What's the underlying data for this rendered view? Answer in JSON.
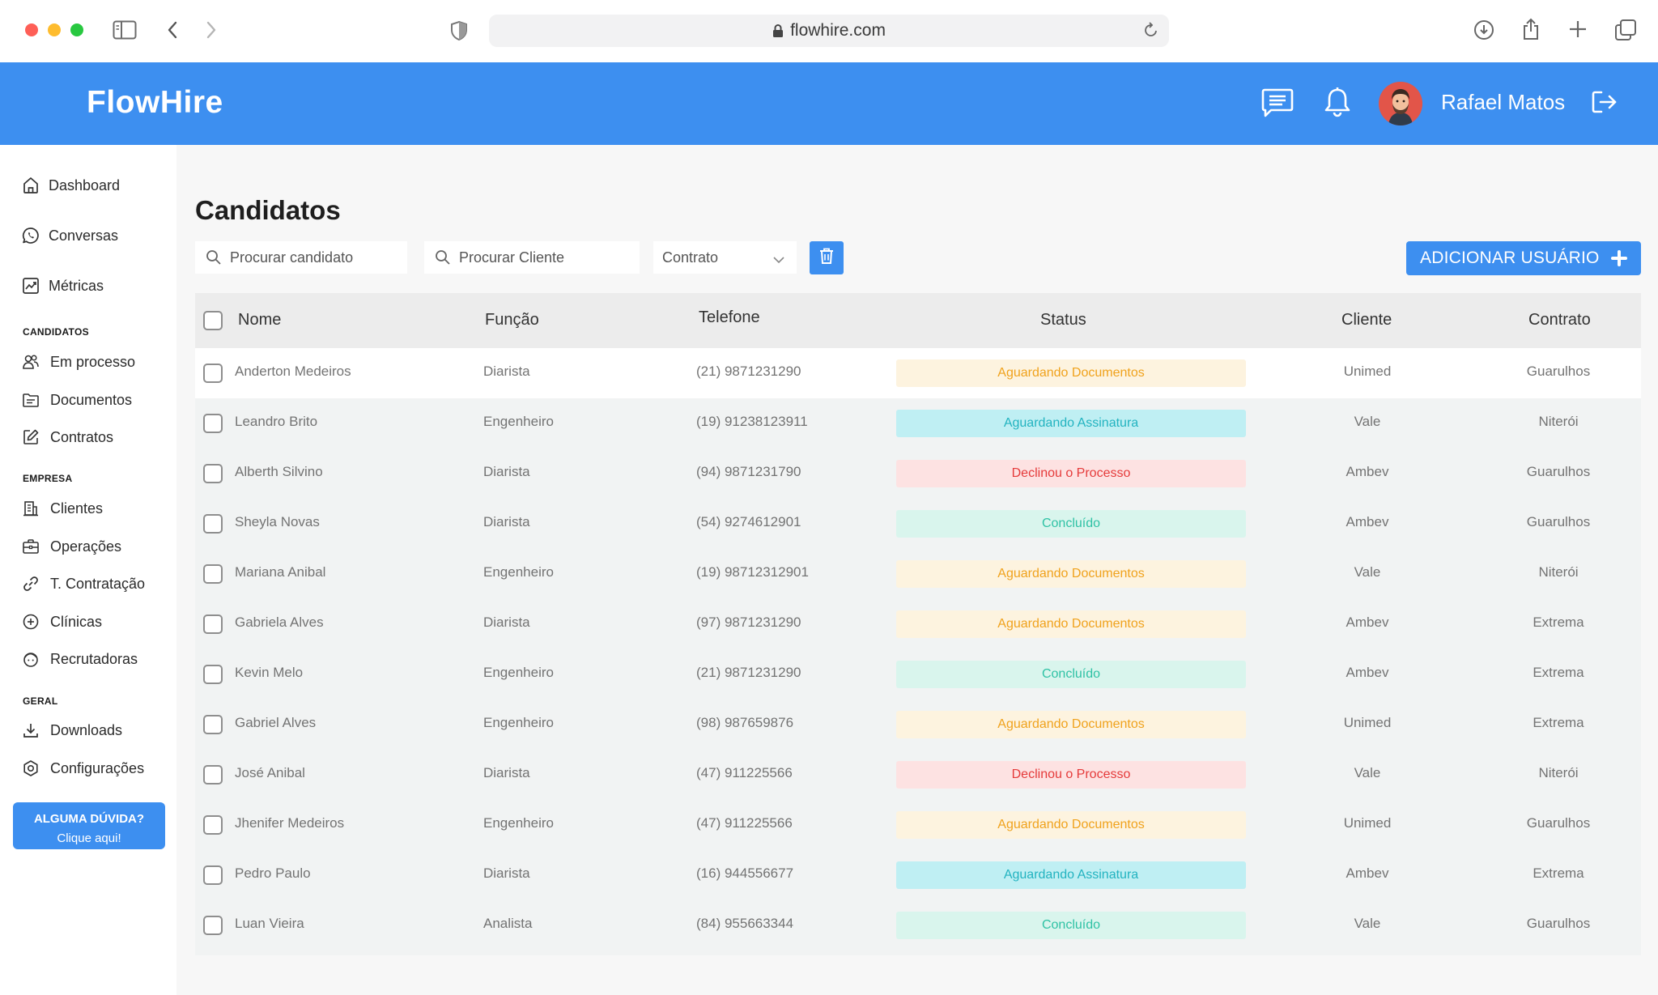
{
  "browser": {
    "url": "flowhire.com"
  },
  "header": {
    "brand": "FlowHire",
    "user_name": "Rafael Matos"
  },
  "sidebar": {
    "main_items": [
      {
        "label": "Dashboard",
        "icon": "home-icon"
      },
      {
        "label": "Conversas",
        "icon": "whatsapp-icon"
      },
      {
        "label": "Métricas",
        "icon": "chart-icon"
      }
    ],
    "sections": [
      {
        "title": "CANDIDATOS",
        "items": [
          {
            "label": "Em processo",
            "icon": "users-icon"
          },
          {
            "label": "Documentos",
            "icon": "folder-icon"
          },
          {
            "label": "Contratos",
            "icon": "edit-icon"
          }
        ]
      },
      {
        "title": "EMPRESA",
        "items": [
          {
            "label": "Clientes",
            "icon": "building-icon"
          },
          {
            "label": "Operações",
            "icon": "briefcase-icon"
          },
          {
            "label": "T. Contratação",
            "icon": "link-icon"
          },
          {
            "label": "Clínicas",
            "icon": "plus-circle-icon"
          },
          {
            "label": "Recrutadoras",
            "icon": "face-icon"
          }
        ]
      },
      {
        "title": "GERAL",
        "items": [
          {
            "label": "Downloads",
            "icon": "download-icon"
          },
          {
            "label": "Configurações",
            "icon": "settings-icon"
          }
        ]
      }
    ],
    "help": {
      "line1": "ALGUMA DÚVIDA?",
      "line2": "Clique aqui!"
    }
  },
  "page": {
    "title": "Candidatos",
    "search_candidate_placeholder": "Procurar candidato",
    "search_client_placeholder": "Procurar Cliente",
    "contract_select": "Contrato",
    "add_button": "ADICIONAR USUÁRIO"
  },
  "table": {
    "columns": [
      "Nome",
      "Função",
      "Telefone",
      "Status",
      "Cliente",
      "Contrato"
    ],
    "rows": [
      {
        "nome": "Anderton Medeiros",
        "funcao": "Diarista",
        "telefone": "(21) 9871231290",
        "status": "Aguardando Documentos",
        "cliente": "Unimed",
        "contrato": "Guarulhos"
      },
      {
        "nome": "Leandro Brito",
        "funcao": "Engenheiro",
        "telefone": "(19) 91238123911",
        "status": "Aguardando Assinatura",
        "cliente": "Vale",
        "contrato": "Niterói"
      },
      {
        "nome": "Alberth Silvino",
        "funcao": "Diarista",
        "telefone": "(94) 9871231790",
        "status": "Declinou o Processo",
        "cliente": "Ambev",
        "contrato": "Guarulhos"
      },
      {
        "nome": "Sheyla Novas",
        "funcao": "Diarista",
        "telefone": "(54) 9274612901",
        "status": "Concluído",
        "cliente": "Ambev",
        "contrato": "Guarulhos"
      },
      {
        "nome": "Mariana Anibal",
        "funcao": "Engenheiro",
        "telefone": "(19) 98712312901",
        "status": "Aguardando Documentos",
        "cliente": "Vale",
        "contrato": "Niterói"
      },
      {
        "nome": "Gabriela Alves",
        "funcao": "Diarista",
        "telefone": "(97) 9871231290",
        "status": "Aguardando Documentos",
        "cliente": "Ambev",
        "contrato": "Extrema"
      },
      {
        "nome": "Kevin Melo",
        "funcao": "Engenheiro",
        "telefone": "(21) 9871231290",
        "status": "Concluído",
        "cliente": "Ambev",
        "contrato": "Extrema"
      },
      {
        "nome": "Gabriel Alves",
        "funcao": "Engenheiro",
        "telefone": "(98) 987659876",
        "status": "Aguardando Documentos",
        "cliente": "Unimed",
        "contrato": "Extrema"
      },
      {
        "nome": "José Anibal",
        "funcao": "Diarista",
        "telefone": "(47) 911225566",
        "status": "Declinou o Processo",
        "cliente": "Vale",
        "contrato": "Niterói"
      },
      {
        "nome": "Jhenifer Medeiros",
        "funcao": "Engenheiro",
        "telefone": "(47) 911225566",
        "status": "Aguardando Documentos",
        "cliente": "Unimed",
        "contrato": "Guarulhos"
      },
      {
        "nome": "Pedro Paulo",
        "funcao": "Diarista",
        "telefone": "(16) 944556677",
        "status": "Aguardando Assinatura",
        "cliente": "Ambev",
        "contrato": "Extrema"
      },
      {
        "nome": "Luan Vieira",
        "funcao": "Analista",
        "telefone": "(84) 955663344",
        "status": "Concluído",
        "cliente": "Vale",
        "contrato": "Guarulhos"
      }
    ]
  },
  "status_colors": {
    "Aguardando Documentos": {
      "bg": "#fdf3df",
      "fg": "#f0a21c"
    },
    "Aguardando Assinatura": {
      "bg": "#bfeff3",
      "fg": "#22b3c0"
    },
    "Declinou o Processo": {
      "bg": "#fde2e2",
      "fg": "#e53a3a"
    },
    "Concluído": {
      "bg": "#d9f5ed",
      "fg": "#2fc2a5"
    }
  },
  "colors": {
    "brand": "#3d8ff0"
  }
}
